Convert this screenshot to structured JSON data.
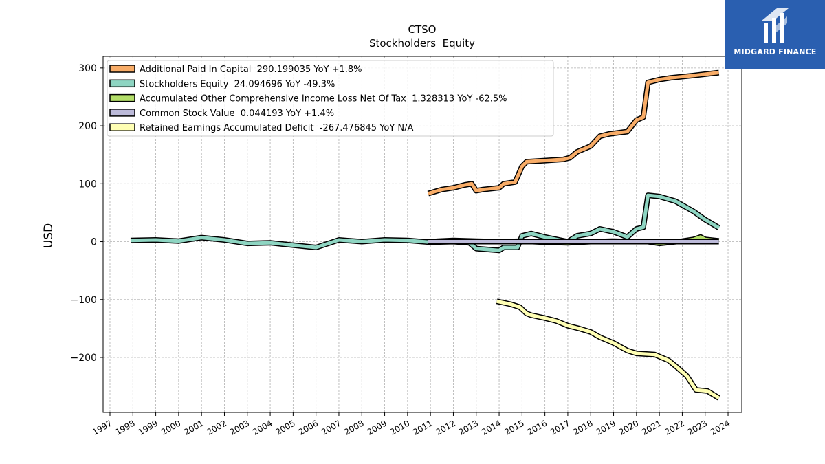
{
  "brand": {
    "name": "MIDGARD FINANCE",
    "bg_color": "#2a5fb0"
  },
  "chart_data": {
    "type": "line",
    "title": "CTSO",
    "subtitle": "Stockholders  Equity",
    "ylabel": "USD",
    "xlabel": "",
    "xlim": [
      1996.7,
      2024.6
    ],
    "ylim": [
      -295,
      320
    ],
    "grid": true,
    "legend_position": "top-left",
    "x_ticks": [
      1997,
      1998,
      1999,
      2000,
      2001,
      2002,
      2003,
      2004,
      2005,
      2006,
      2007,
      2008,
      2009,
      2010,
      2011,
      2012,
      2013,
      2014,
      2015,
      2016,
      2017,
      2018,
      2019,
      2020,
      2021,
      2022,
      2023,
      2024
    ],
    "y_ticks": [
      -200,
      -100,
      0,
      100,
      200,
      300
    ],
    "y_tick_labels": [
      "−200",
      "−100",
      "0",
      "100",
      "200",
      "300"
    ],
    "series": [
      {
        "name": "Additional Paid In Capital",
        "legend_label": "Additional Paid In Capital  290.199035 YoY +1.8%",
        "color": "#f8ac67",
        "points": [
          [
            2010.9,
            83
          ],
          [
            2011.5,
            90
          ],
          [
            2012,
            93
          ],
          [
            2012.5,
            98
          ],
          [
            2012.8,
            100
          ],
          [
            2013,
            88
          ],
          [
            2013.3,
            90
          ],
          [
            2014,
            93
          ],
          [
            2014.2,
            100
          ],
          [
            2014.7,
            103
          ],
          [
            2015,
            130
          ],
          [
            2015.2,
            138
          ],
          [
            2016,
            140
          ],
          [
            2016.8,
            142
          ],
          [
            2017.1,
            145
          ],
          [
            2017.4,
            155
          ],
          [
            2018,
            165
          ],
          [
            2018.4,
            182
          ],
          [
            2018.8,
            186
          ],
          [
            2019.2,
            188
          ],
          [
            2019.6,
            190
          ],
          [
            2020,
            210
          ],
          [
            2020.3,
            215
          ],
          [
            2020.5,
            275
          ],
          [
            2021,
            280
          ],
          [
            2021.5,
            283
          ],
          [
            2022.5,
            287
          ],
          [
            2023.6,
            292
          ]
        ]
      },
      {
        "name": "Stockholders Equity",
        "legend_label": "Stockholders Equity  24.094696 YoY -49.3%",
        "color": "#8ed5c2",
        "points": [
          [
            1997.9,
            2
          ],
          [
            1999,
            3
          ],
          [
            2000,
            1
          ],
          [
            2001,
            7
          ],
          [
            2002,
            3
          ],
          [
            2003,
            -3
          ],
          [
            2004,
            -2
          ],
          [
            2005,
            -6
          ],
          [
            2006,
            -10
          ],
          [
            2007,
            3
          ],
          [
            2008,
            0
          ],
          [
            2009,
            3
          ],
          [
            2010,
            2
          ],
          [
            2011,
            -1
          ],
          [
            2012,
            0
          ],
          [
            2012.7,
            -2
          ],
          [
            2013,
            -12
          ],
          [
            2014,
            -15
          ],
          [
            2014.2,
            -10
          ],
          [
            2014.8,
            -10
          ],
          [
            2015,
            10
          ],
          [
            2015.4,
            14
          ],
          [
            2016,
            8
          ],
          [
            2016.5,
            4
          ],
          [
            2017,
            0
          ],
          [
            2017.4,
            10
          ],
          [
            2018,
            14
          ],
          [
            2018.4,
            22
          ],
          [
            2019,
            17
          ],
          [
            2019.6,
            8
          ],
          [
            2020,
            22
          ],
          [
            2020.3,
            25
          ],
          [
            2020.5,
            80
          ],
          [
            2021,
            78
          ],
          [
            2021.7,
            70
          ],
          [
            2022.5,
            52
          ],
          [
            2023,
            38
          ],
          [
            2023.6,
            24
          ]
        ]
      },
      {
        "name": "Accumulated Other Comprehensive Income Loss Net Of Tax",
        "legend_label": "Accumulated Other Comprehensive Income Loss Net Of Tax  1.328313 YoY -62.5%",
        "color": "#b3de69",
        "points": [
          [
            2010.9,
            0
          ],
          [
            2012,
            2
          ],
          [
            2013,
            1
          ],
          [
            2014,
            0
          ],
          [
            2015,
            1
          ],
          [
            2016,
            -1
          ],
          [
            2017,
            -2
          ],
          [
            2018,
            0
          ],
          [
            2019,
            1
          ],
          [
            2020,
            0
          ],
          [
            2020.5,
            0
          ],
          [
            2021,
            -3
          ],
          [
            2022,
            1
          ],
          [
            2022.5,
            4
          ],
          [
            2022.8,
            8
          ],
          [
            2023,
            4
          ],
          [
            2023.6,
            1.3
          ]
        ]
      },
      {
        "name": "Common Stock Value",
        "legend_label": "Common Stock Value  0.044193 YoY +1.4%",
        "color": "#bcbad9",
        "points": [
          [
            2010.9,
            0.04
          ],
          [
            2023.6,
            0.044
          ]
        ]
      },
      {
        "name": "Retained Earnings Accumulated Deficit",
        "legend_label": "Retained Earnings Accumulated Deficit  -267.476845 YoY N/A",
        "color": "#ffffb4",
        "points": [
          [
            2013.9,
            -103
          ],
          [
            2014.5,
            -108
          ],
          [
            2014.9,
            -113
          ],
          [
            2015.2,
            -124
          ],
          [
            2015.4,
            -127
          ],
          [
            2016,
            -132
          ],
          [
            2016.5,
            -137
          ],
          [
            2017,
            -145
          ],
          [
            2017.5,
            -150
          ],
          [
            2018,
            -156
          ],
          [
            2018.4,
            -165
          ],
          [
            2019,
            -175
          ],
          [
            2019.6,
            -188
          ],
          [
            2020,
            -193
          ],
          [
            2020.8,
            -195
          ],
          [
            2021.4,
            -205
          ],
          [
            2021.8,
            -218
          ],
          [
            2022.2,
            -232
          ],
          [
            2022.6,
            -256
          ],
          [
            2023.1,
            -258
          ],
          [
            2023.6,
            -270
          ]
        ]
      }
    ]
  }
}
